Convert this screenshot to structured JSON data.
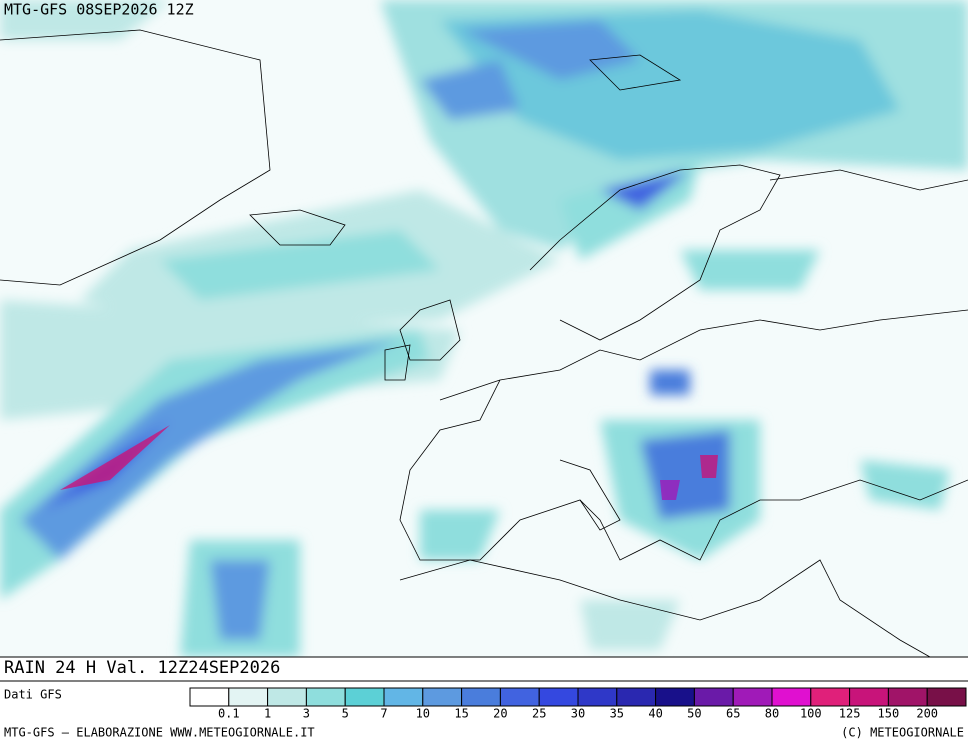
{
  "header": {
    "title": "MTG-GFS 08SEP2026 12Z"
  },
  "map": {
    "caption": "RAIN 24 H Val. 12Z24SEP2026"
  },
  "legend": {
    "source": "Dati GFS",
    "colors": [
      "#ffffff",
      "#e3f4f3",
      "#bfe8e6",
      "#8fdedd",
      "#5cd0d6",
      "#62b6e6",
      "#5d9ae0",
      "#4a7ddc",
      "#4163e0",
      "#3448e0",
      "#2f38c8",
      "#2a28b0",
      "#18108a",
      "#6a1aa8",
      "#a01ab8",
      "#e010d0",
      "#e0207a",
      "#c8147a",
      "#a01468",
      "#781048"
    ],
    "labels": [
      0.1,
      1,
      3,
      5,
      7,
      10,
      15,
      20,
      25,
      30,
      35,
      40,
      50,
      65,
      80,
      100,
      125,
      150,
      200
    ]
  },
  "footer": {
    "left": "MTG-GFS — ELABORAZIONE WWW.METEOGIORNALE.IT",
    "right": "(C) METEOGIORNALE"
  }
}
